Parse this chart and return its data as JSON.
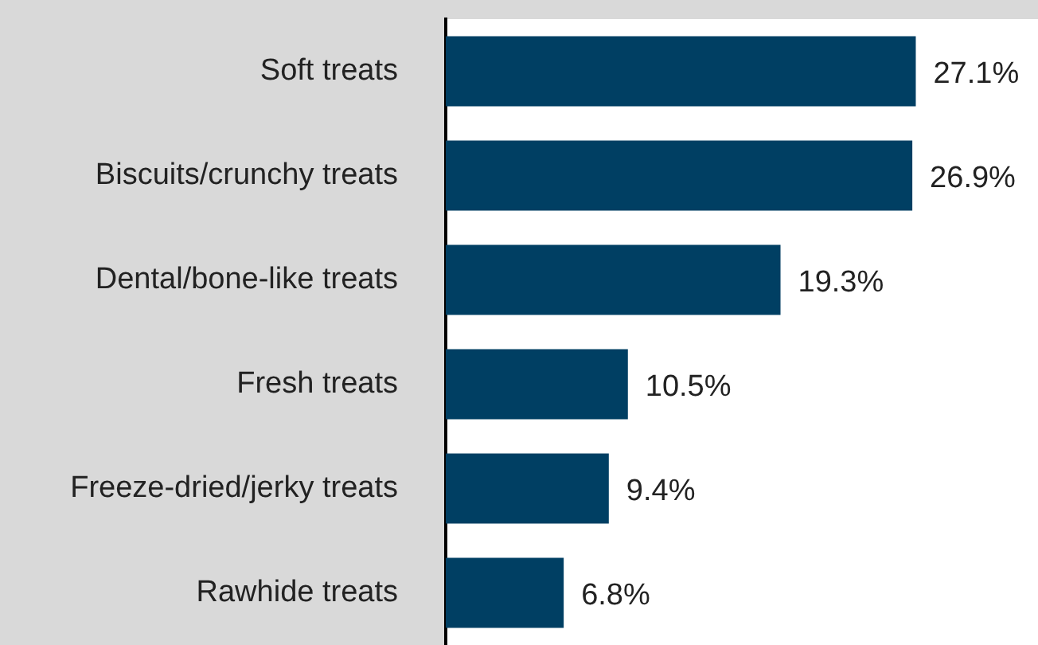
{
  "chart_data": {
    "type": "bar",
    "orientation": "horizontal",
    "categories": [
      "Soft treats",
      "Biscuits/crunchy treats",
      "Dental/bone-like treats",
      "Fresh treats",
      "Freeze-dried/jerky treats",
      "Rawhide treats"
    ],
    "values": [
      27.1,
      26.9,
      19.3,
      10.5,
      9.4,
      6.8
    ],
    "value_labels": [
      "27.1%",
      "26.9%",
      "19.3%",
      "10.5%",
      "9.4%",
      "6.8%"
    ],
    "color": "#003f63",
    "legend": false
  }
}
